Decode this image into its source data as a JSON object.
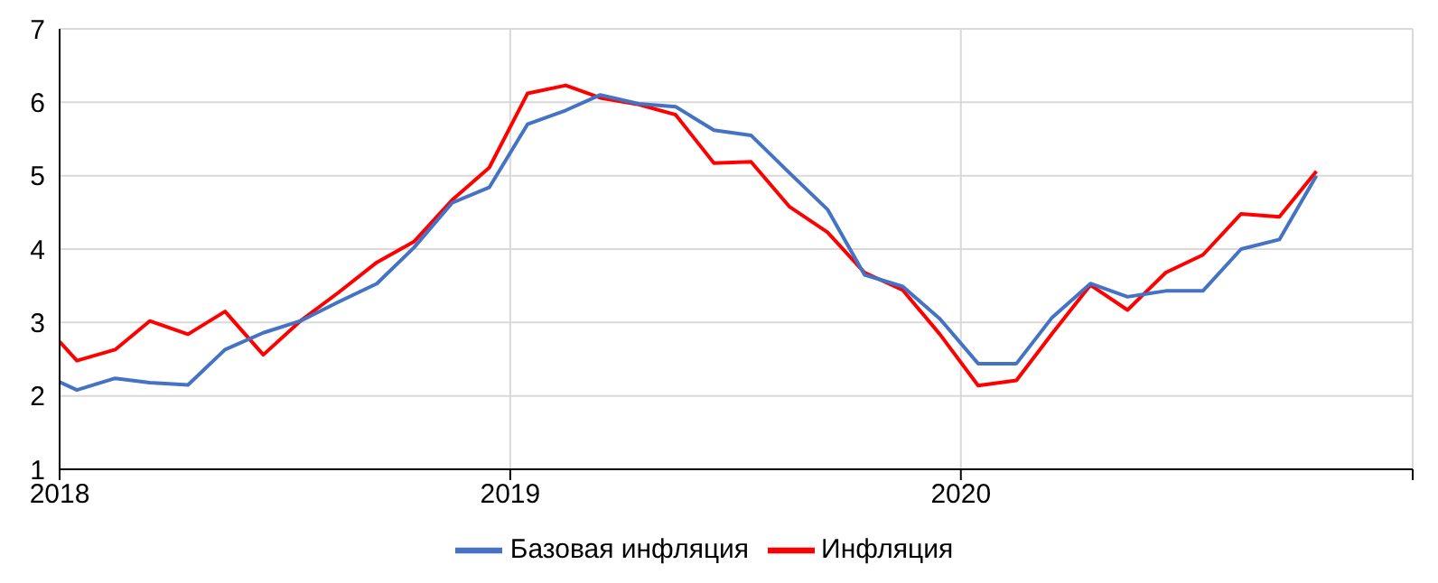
{
  "chart_data": {
    "type": "line",
    "x": [
      "2018-01-01",
      "2018-01-15",
      "2018-02-15",
      "2018-03-15",
      "2018-04-15",
      "2018-05-15",
      "2018-06-15",
      "2018-07-15",
      "2018-08-15",
      "2018-09-15",
      "2018-10-15",
      "2018-11-15",
      "2018-12-15",
      "2019-01-15",
      "2019-02-15",
      "2019-03-15",
      "2019-04-15",
      "2019-05-15",
      "2019-06-15",
      "2019-07-15",
      "2019-08-15",
      "2019-09-15",
      "2019-10-15",
      "2019-11-15",
      "2019-12-15",
      "2020-01-15",
      "2020-02-15",
      "2020-03-15",
      "2020-04-15",
      "2020-05-15",
      "2020-06-15",
      "2020-07-15",
      "2020-08-15",
      "2020-09-15",
      "2020-10-15"
    ],
    "series": [
      {
        "name": "Инфляция",
        "color": "#ff0000",
        "values": [
          2.74,
          2.48,
          2.63,
          3.02,
          2.84,
          3.15,
          2.56,
          3.02,
          3.41,
          3.82,
          4.1,
          4.67,
          5.11,
          6.12,
          6.23,
          6.06,
          5.97,
          5.83,
          5.17,
          5.19,
          4.58,
          4.23,
          3.68,
          3.44,
          2.84,
          2.14,
          2.21,
          2.85,
          3.51,
          3.17,
          3.68,
          3.92,
          4.48,
          4.44,
          5.06
        ]
      },
      {
        "name": "Базовая инфляция",
        "color": "#4472c4",
        "values": [
          2.19,
          2.08,
          2.24,
          2.18,
          2.15,
          2.63,
          2.86,
          3.02,
          3.28,
          3.53,
          4.02,
          4.63,
          4.84,
          5.7,
          5.89,
          6.1,
          5.98,
          5.94,
          5.62,
          5.55,
          5.04,
          4.54,
          3.65,
          3.49,
          3.05,
          2.44,
          2.44,
          3.07,
          3.53,
          3.35,
          3.43,
          3.43,
          4.0,
          4.13,
          5.0
        ]
      }
    ],
    "xlim": [
      "2018-01-01",
      "2021-01-01"
    ],
    "xticks": [
      "2018",
      "2019",
      "2020",
      {
        "value": "2021",
        "label": null
      }
    ],
    "ylim": [
      1,
      7
    ],
    "yticks": [
      1,
      2,
      3,
      4,
      5,
      6,
      7
    ],
    "grid": true,
    "legend": "bottom",
    "marker": "none",
    "line_style": "solid"
  }
}
